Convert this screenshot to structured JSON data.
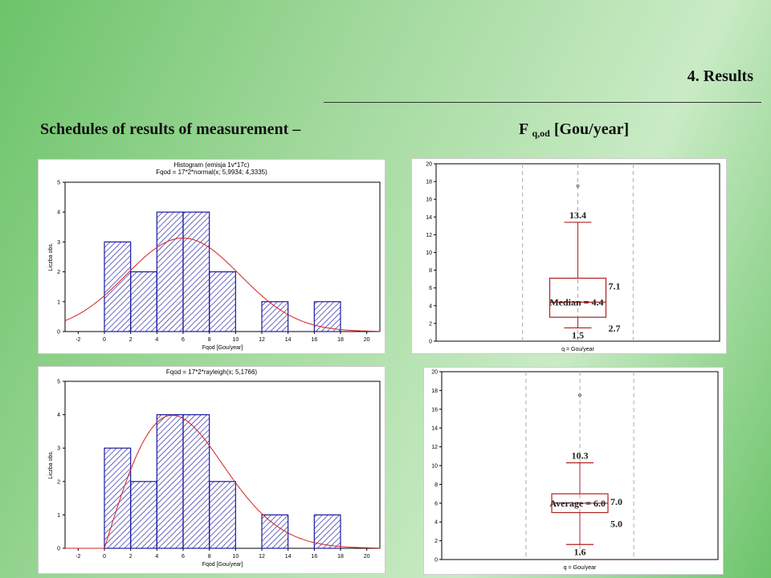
{
  "slide": {
    "section_title": "4. Results",
    "subtitle_left": "Schedules of results of measurement –",
    "subtitle_right_main": "F",
    "subtitle_right_sub": "q,od",
    "subtitle_right_unit": "[Gou/year]",
    "accent_color": "#6cc46a"
  },
  "chart_data": [
    {
      "type": "bar",
      "title": "Histogram (emisja 1v*17c)",
      "subtitle": "Fqod = 17*2*normal(x; 5,9934; 4,3335)",
      "xlabel": "Fqod [Gou/year]",
      "ylabel": "Liczba obs.",
      "bins": [
        [
          0,
          2
        ],
        [
          2,
          4
        ],
        [
          4,
          6
        ],
        [
          6,
          8
        ],
        [
          8,
          10
        ],
        [
          10,
          12
        ],
        [
          12,
          14
        ],
        [
          14,
          16
        ],
        [
          16,
          18
        ]
      ],
      "values": [
        3,
        2,
        4,
        4,
        2,
        0,
        1,
        0,
        1
      ],
      "fit": {
        "dist": "normal",
        "mean": 5.9934,
        "sd": 4.3335,
        "n": 17,
        "width": 2
      },
      "xlim": [
        -3,
        21
      ],
      "ylim": [
        0,
        5
      ],
      "xticks": [
        -2,
        0,
        2,
        4,
        6,
        8,
        10,
        12,
        14,
        16,
        18,
        20
      ],
      "yticks": [
        0,
        1,
        2,
        3,
        4,
        5
      ],
      "bar_color": "#1a1aa0",
      "curve_color": "#d42020"
    },
    {
      "type": "box",
      "xlabel": "q = Gou/year",
      "ylim": [
        0,
        20
      ],
      "yticks": [
        0,
        2,
        4,
        6,
        8,
        10,
        12,
        14,
        16,
        18,
        20
      ],
      "whisker_high": 13.4,
      "box_high": 7.1,
      "center": 4.4,
      "box_low": 2.7,
      "whisker_low": 1.5,
      "outliers": [
        17.5
      ],
      "center_label": "Median = 4.4",
      "high_label": "13.4",
      "box_high_label": "7.1",
      "box_low_label": "2.7",
      "low_label": "1.5",
      "line_color": "#b02020"
    },
    {
      "type": "bar",
      "title": "Fqod = 17*2*rayleigh(x; 5,1766)",
      "xlabel": "Fqod [Gou/year]",
      "ylabel": "Liczba obs.",
      "bins": [
        [
          0,
          2
        ],
        [
          2,
          4
        ],
        [
          4,
          6
        ],
        [
          6,
          8
        ],
        [
          8,
          10
        ],
        [
          10,
          12
        ],
        [
          12,
          14
        ],
        [
          14,
          16
        ],
        [
          16,
          18
        ]
      ],
      "values": [
        3,
        2,
        4,
        4,
        2,
        0,
        1,
        0,
        1
      ],
      "fit": {
        "dist": "rayleigh",
        "sigma": 5.1766,
        "n": 17,
        "width": 2
      },
      "xlim": [
        -3,
        21
      ],
      "ylim": [
        0,
        5
      ],
      "xticks": [
        -2,
        0,
        2,
        4,
        6,
        8,
        10,
        12,
        14,
        16,
        18,
        20
      ],
      "yticks": [
        0,
        1,
        2,
        3,
        4,
        5
      ],
      "bar_color": "#1a1aa0",
      "curve_color": "#d42020"
    },
    {
      "type": "box",
      "xlabel": "q = Gou/year",
      "ylim": [
        0,
        20
      ],
      "yticks": [
        0,
        2,
        4,
        6,
        8,
        10,
        12,
        14,
        16,
        18,
        20
      ],
      "whisker_high": 10.3,
      "box_high": 7.0,
      "center": 6.0,
      "box_low": 5.0,
      "whisker_low": 1.6,
      "outliers": [
        17.5
      ],
      "center_label": "Average = 6.0",
      "high_label": "10.3",
      "box_high_label": "7.0",
      "box_low_label": "5.0",
      "low_label": "1.6",
      "line_color": "#b02020"
    }
  ]
}
